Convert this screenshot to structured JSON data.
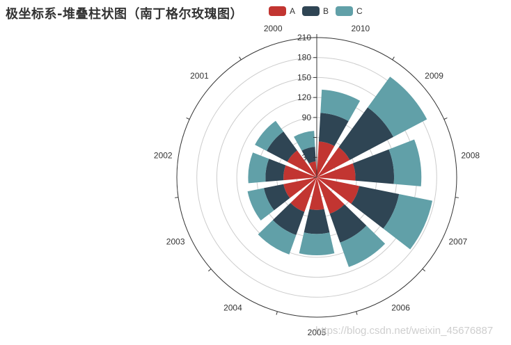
{
  "title": "极坐标系-堆叠柱状图（南丁格尔玫瑰图）",
  "legend": [
    {
      "label": "A",
      "color": "#c23531"
    },
    {
      "label": "B",
      "color": "#2f4554"
    },
    {
      "label": "C",
      "color": "#61a0a8"
    }
  ],
  "watermark": "https://blog.csdn.net/weixin_45676887",
  "colors": {
    "axis_line": "#333333",
    "split_line": "#cccccc",
    "label_text": "#333333"
  },
  "chart_data": {
    "type": "bar",
    "subtype": "polar-stacked-bar (nightingale rose)",
    "title": "极坐标系-堆叠柱状图（南丁格尔玫瑰图）",
    "categories": [
      "2000",
      "2001",
      "2002",
      "2003",
      "2004",
      "2005",
      "2006",
      "2007",
      "2008",
      "2009",
      "2010"
    ],
    "series": [
      {
        "name": "A",
        "stack": "a",
        "values": [
          24,
          50,
          50,
          51,
          55,
          49,
          58,
          65,
          58,
          56,
          54
        ]
      },
      {
        "name": "B",
        "stack": "a",
        "values": [
          22,
          35,
          27,
          30,
          37,
          36,
          46,
          61,
          58,
          74,
          43
        ]
      },
      {
        "name": "C",
        "stack": "a",
        "values": [
          24,
          20,
          26,
          25,
          31,
          32,
          39,
          51,
          41,
          57,
          35
        ]
      }
    ],
    "radius_axis": {
      "min": 0,
      "max": 210,
      "interval": 30,
      "ticks": [
        "0",
        "30",
        "60",
        "90",
        "120",
        "150",
        "180",
        "210"
      ]
    },
    "angle_axis": {
      "type": "category",
      "direction": "counterclockwise",
      "start_angle": 90
    },
    "legend_position": "top",
    "grid": true
  }
}
